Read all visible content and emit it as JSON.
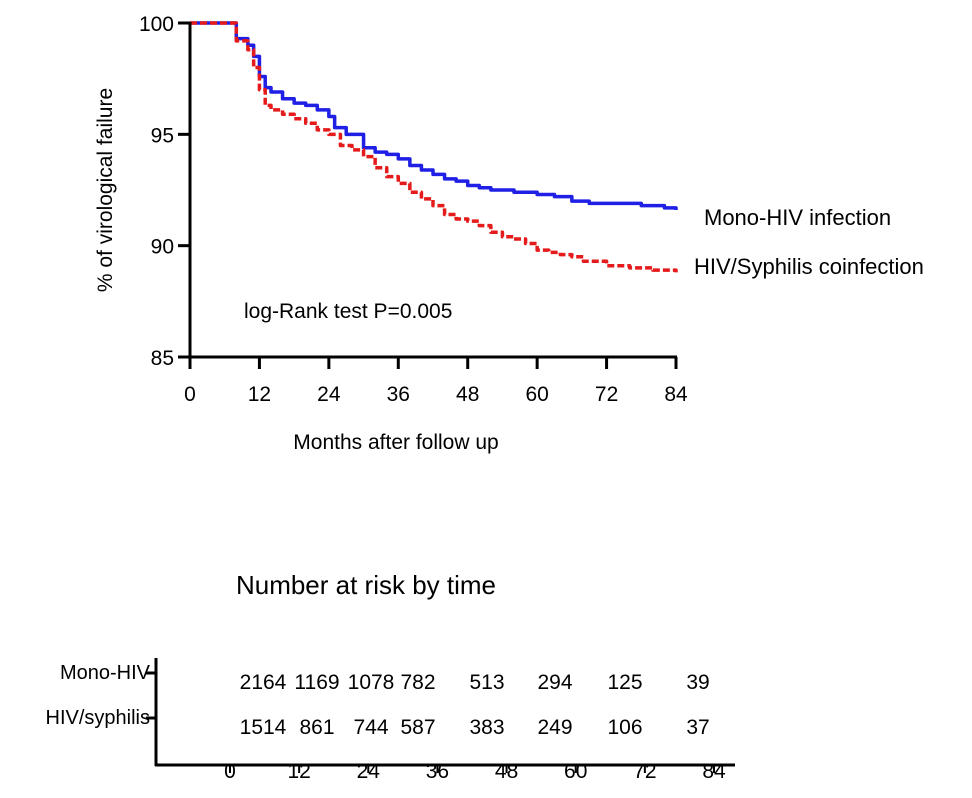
{
  "chart_data": [
    {
      "type": "line",
      "ylabel": "% of virological failure",
      "xlabel": "Months after follow up",
      "xlim": [
        0,
        84
      ],
      "ylim": [
        85,
        100
      ],
      "x_ticks": [
        0,
        12,
        24,
        36,
        48,
        60,
        72,
        84
      ],
      "y_ticks": [
        85,
        90,
        95,
        100
      ],
      "grid": false,
      "annotation": "log-Rank test P=0.005",
      "series": [
        {
          "name": "Mono-HIV infection",
          "color": "#1f1fe6",
          "style": "solid",
          "x": [
            0,
            6,
            8,
            10,
            11,
            12,
            13,
            14,
            16,
            18,
            20,
            22,
            24,
            25,
            27,
            30,
            32,
            34,
            36,
            38,
            40,
            42,
            44,
            46,
            48,
            50,
            52,
            54,
            56,
            58,
            60,
            63,
            66,
            69,
            72,
            75,
            78,
            80,
            82,
            84
          ],
          "y": [
            100,
            100,
            99.3,
            99.0,
            98.5,
            97.6,
            97.1,
            96.9,
            96.6,
            96.4,
            96.3,
            96.1,
            95.8,
            95.3,
            95.0,
            94.4,
            94.2,
            94.1,
            93.9,
            93.6,
            93.4,
            93.2,
            93.0,
            92.9,
            92.7,
            92.6,
            92.5,
            92.5,
            92.4,
            92.4,
            92.3,
            92.2,
            92.0,
            91.9,
            91.9,
            91.9,
            91.8,
            91.8,
            91.7,
            91.6
          ]
        },
        {
          "name": "HIV/Syphilis coinfection",
          "color": "#e51a1a",
          "style": "dashed",
          "x": [
            0,
            6,
            8,
            10,
            11,
            12,
            13,
            14,
            16,
            18,
            20,
            22,
            24,
            26,
            28,
            30,
            32,
            34,
            36,
            38,
            40,
            42,
            44,
            46,
            48,
            50,
            52,
            54,
            56,
            58,
            60,
            62,
            64,
            66,
            68,
            72,
            76,
            80,
            84
          ],
          "y": [
            100,
            100,
            99.2,
            98.8,
            98.0,
            97.0,
            96.3,
            96.1,
            95.9,
            95.7,
            95.5,
            95.2,
            95.0,
            94.5,
            94.3,
            94.0,
            93.5,
            93.1,
            92.8,
            92.4,
            92.1,
            91.8,
            91.4,
            91.2,
            91.1,
            90.9,
            90.6,
            90.4,
            90.3,
            90.1,
            89.8,
            89.7,
            89.6,
            89.5,
            89.3,
            89.1,
            89.0,
            88.9,
            88.8
          ]
        }
      ]
    },
    {
      "type": "table",
      "title": "Number at risk by time",
      "x_ticks": [
        0,
        12,
        24,
        36,
        48,
        60,
        72,
        84
      ],
      "rows": [
        {
          "label": "Mono-HIV",
          "values": [
            "2164",
            "1169",
            "1078",
            "782",
            "513",
            "294",
            "125",
            "39"
          ]
        },
        {
          "label": "HIV/syphilis",
          "values": [
            "1514",
            "861",
            "744",
            "587",
            "383",
            "249",
            "106",
            "37"
          ]
        }
      ]
    }
  ]
}
